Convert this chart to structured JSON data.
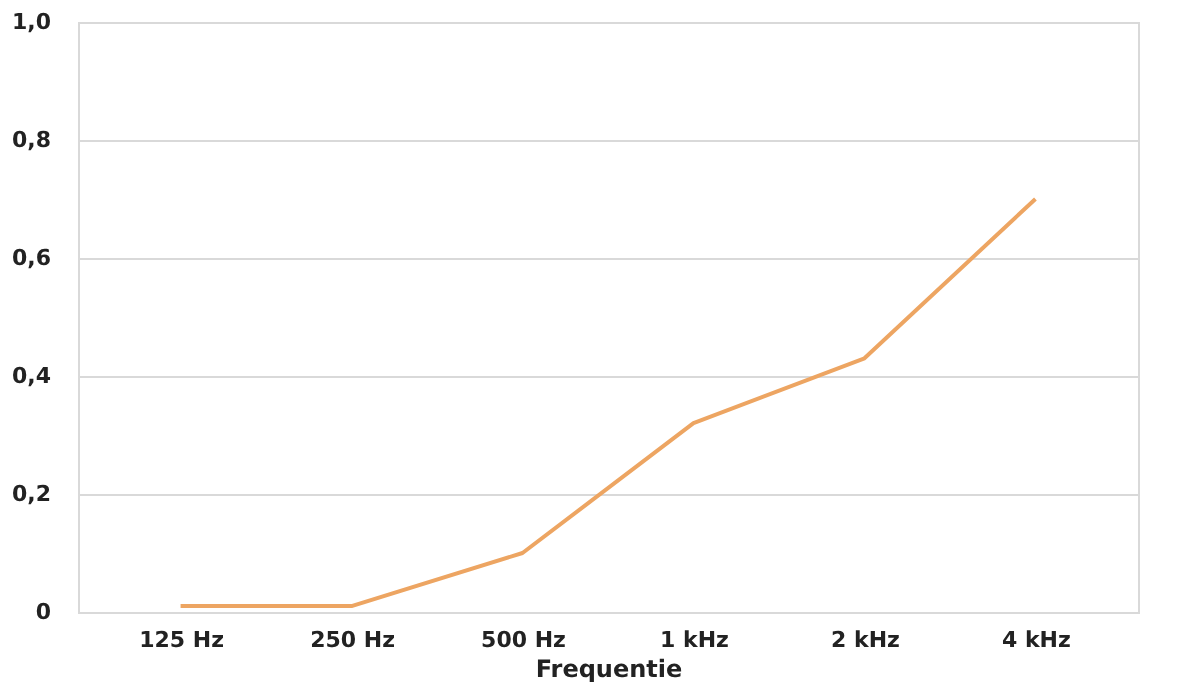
{
  "chart_data": {
    "type": "line",
    "xlabel": "Frequentie",
    "categories": [
      "125 Hz",
      "250 Hz",
      "500 Hz",
      "1 kHz",
      "2 kHz",
      "4 kHz"
    ],
    "series": [
      {
        "color": "#eda562",
        "values": [
          0.01,
          0.01,
          0.1,
          0.32,
          0.43,
          0.7
        ]
      }
    ],
    "ylim": [
      0,
      1.0
    ],
    "yticks": [
      0,
      {
        "value": 0.2,
        "label": "0,2"
      },
      {
        "value": 0.4,
        "label": "0,4"
      },
      {
        "value": 0.6,
        "label": "0,6"
      },
      {
        "value": 0.8,
        "label": "0,8"
      },
      {
        "value": 1.0,
        "label": "1,0"
      }
    ],
    "grid": "y",
    "legend": false,
    "marker": "none",
    "line_style": "solid"
  }
}
